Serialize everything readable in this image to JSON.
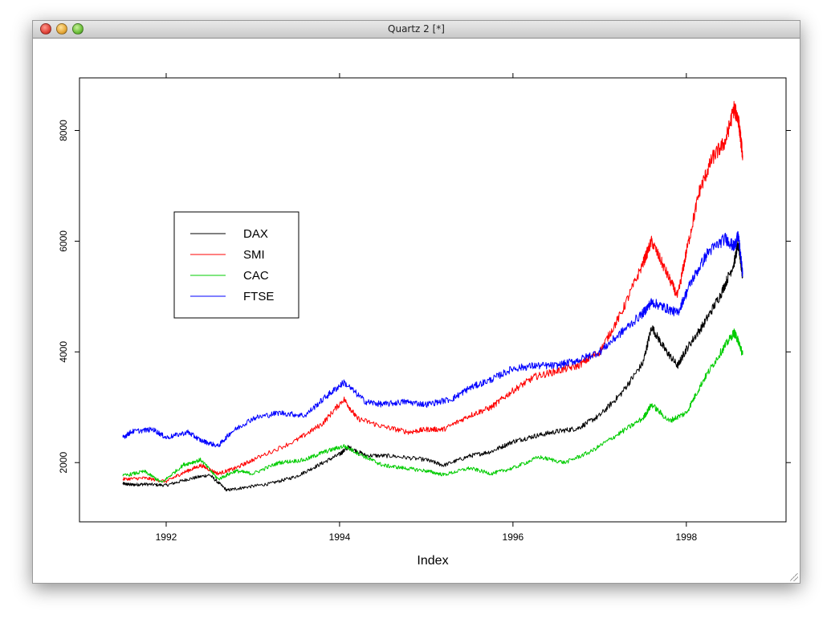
{
  "window": {
    "title": "Quartz 2 [*]"
  },
  "chart_data": {
    "type": "line",
    "title": "",
    "xlabel": "Index",
    "ylabel": "",
    "xlim": [
      1991.0,
      1999.15
    ],
    "ylim": [
      930,
      8950
    ],
    "x_ticks": [
      1992,
      1994,
      1996,
      1998
    ],
    "x_tick_labels": [
      "1992",
      "1994",
      "1996",
      "1998"
    ],
    "y_ticks": [
      2000,
      4000,
      6000,
      8000
    ],
    "y_tick_labels": [
      "2000",
      "4000",
      "6000",
      "8000"
    ],
    "grid": false,
    "legend": {
      "position": "left-center",
      "entries": [
        "DAX",
        "SMI",
        "CAC",
        "FTSE"
      ]
    },
    "colors": {
      "DAX": "#000000",
      "SMI": "#ff0000",
      "CAC": "#00cc00",
      "FTSE": "#0000ff"
    },
    "series": [
      {
        "name": "DAX",
        "x": [
          1991.5,
          1991.6,
          1991.75,
          1992.0,
          1992.25,
          1992.5,
          1992.7,
          1992.9,
          1993.2,
          1993.5,
          1993.75,
          1994.0,
          1994.1,
          1994.3,
          1994.6,
          1995.0,
          1995.2,
          1995.5,
          1995.75,
          1996.0,
          1996.25,
          1996.5,
          1996.75,
          1997.0,
          1997.25,
          1997.5,
          1997.6,
          1997.75,
          1997.9,
          1998.0,
          1998.2,
          1998.4,
          1998.55,
          1998.6,
          1998.65
        ],
        "y": [
          1620,
          1600,
          1610,
          1590,
          1700,
          1780,
          1500,
          1550,
          1620,
          1750,
          1950,
          2150,
          2280,
          2130,
          2120,
          2050,
          1950,
          2120,
          2200,
          2380,
          2480,
          2560,
          2620,
          2850,
          3250,
          3800,
          4450,
          4050,
          3750,
          4050,
          4500,
          5050,
          5600,
          5950,
          5350
        ]
      },
      {
        "name": "SMI",
        "x": [
          1991.5,
          1991.75,
          1992.0,
          1992.2,
          1992.4,
          1992.6,
          1992.8,
          1993.0,
          1993.5,
          1993.8,
          1994.05,
          1994.2,
          1994.5,
          1994.8,
          1995.0,
          1995.2,
          1995.5,
          1995.75,
          1996.0,
          1996.25,
          1996.5,
          1996.75,
          1997.0,
          1997.25,
          1997.5,
          1997.6,
          1997.75,
          1997.9,
          1998.0,
          1998.15,
          1998.3,
          1998.45,
          1998.55,
          1998.6,
          1998.65
        ],
        "y": [
          1700,
          1720,
          1660,
          1820,
          1950,
          1800,
          1900,
          2050,
          2400,
          2700,
          3150,
          2800,
          2650,
          2550,
          2600,
          2600,
          2850,
          3000,
          3300,
          3550,
          3650,
          3750,
          4000,
          4700,
          5600,
          6000,
          5500,
          5000,
          5800,
          6900,
          7500,
          7800,
          8400,
          8200,
          7550
        ]
      },
      {
        "name": "CAC",
        "x": [
          1991.5,
          1991.75,
          1991.95,
          1992.2,
          1992.4,
          1992.6,
          1992.8,
          1993.0,
          1993.3,
          1993.6,
          1993.8,
          1994.05,
          1994.3,
          1994.5,
          1994.75,
          1995.0,
          1995.2,
          1995.5,
          1995.75,
          1996.0,
          1996.3,
          1996.6,
          1996.9,
          1997.2,
          1997.5,
          1997.6,
          1997.8,
          1998.0,
          1998.2,
          1998.4,
          1998.55,
          1998.6,
          1998.65
        ],
        "y": [
          1760,
          1840,
          1640,
          1960,
          2050,
          1700,
          1850,
          1800,
          2000,
          2050,
          2180,
          2300,
          2100,
          1950,
          1900,
          1850,
          1780,
          1900,
          1800,
          1900,
          2100,
          2000,
          2200,
          2500,
          2800,
          3050,
          2750,
          2900,
          3500,
          4000,
          4350,
          4200,
          3950
        ]
      },
      {
        "name": "FTSE",
        "x": [
          1991.5,
          1991.6,
          1991.85,
          1992.0,
          1992.25,
          1992.4,
          1992.6,
          1992.75,
          1993.0,
          1993.3,
          1993.6,
          1993.85,
          1994.05,
          1994.3,
          1994.5,
          1994.75,
          1995.0,
          1995.3,
          1995.5,
          1995.75,
          1996.0,
          1996.25,
          1996.5,
          1996.75,
          1997.0,
          1997.25,
          1997.5,
          1997.6,
          1997.75,
          1997.9,
          1998.05,
          1998.25,
          1998.45,
          1998.55,
          1998.6,
          1998.65
        ],
        "y": [
          2450,
          2560,
          2600,
          2450,
          2550,
          2400,
          2300,
          2550,
          2800,
          2900,
          2850,
          3200,
          3450,
          3100,
          3050,
          3100,
          3050,
          3150,
          3350,
          3500,
          3700,
          3750,
          3750,
          3850,
          4000,
          4350,
          4700,
          4900,
          4800,
          4700,
          5250,
          5800,
          6050,
          5900,
          6100,
          5400
        ]
      }
    ]
  }
}
